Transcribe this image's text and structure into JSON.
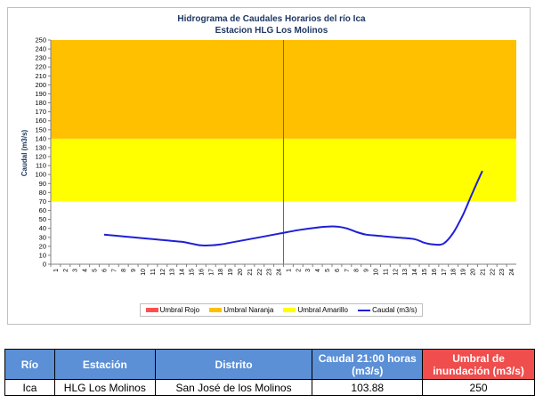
{
  "colors": {
    "rojo": "#ff5050",
    "naranja": "#ffc000",
    "amarillo": "#ffff00",
    "caudal": "#1f1fd6",
    "header_blue": "#5b8fd6",
    "header_red": "#f04d4d"
  },
  "chart_data": {
    "type": "line",
    "title": "Hidrograma de Caudales Horarios del río Ica",
    "subtitle": "Estacion HLG Los Molinos",
    "ylabel": "Caudal  (m3/s)",
    "xlabel": "",
    "ylim": [
      0,
      250
    ],
    "yticks": [
      0,
      10,
      20,
      30,
      40,
      50,
      60,
      70,
      80,
      90,
      100,
      110,
      120,
      130,
      140,
      150,
      160,
      170,
      180,
      190,
      200,
      210,
      220,
      230,
      240,
      250
    ],
    "x_tick_labels": [
      "1",
      "2",
      "3",
      "4",
      "5",
      "6",
      "7",
      "8",
      "9",
      "10",
      "11",
      "12",
      "13",
      "14",
      "15",
      "16",
      "17",
      "18",
      "19",
      "20",
      "21",
      "22",
      "23",
      "24",
      "1",
      "2",
      "3",
      "4",
      "5",
      "6",
      "7",
      "8",
      "9",
      "10",
      "11",
      "12",
      "13",
      "14",
      "15",
      "16",
      "17",
      "18",
      "19",
      "20",
      "21",
      "22",
      "23",
      "24"
    ],
    "grid": false,
    "legend_position": "bottom",
    "bands": [
      {
        "name": "Umbral Amarillo",
        "from": 70,
        "to": 140,
        "color": "#ffff00"
      },
      {
        "name": "Umbral Naranja",
        "from": 140,
        "to": 250,
        "color": "#ffc000"
      }
    ],
    "legend": [
      "Umbral Rojo",
      "Umbral Naranja",
      "Umbral Amarillo",
      "Caudal (m3/s)"
    ],
    "series": [
      {
        "name": "Caudal (m3/s)",
        "x": [
          6,
          8,
          10,
          12,
          14,
          15,
          16,
          17,
          18,
          19,
          20,
          22,
          24,
          26,
          28,
          29,
          30,
          31,
          32,
          33,
          34,
          35,
          36,
          38,
          39,
          40,
          41,
          42,
          43,
          44,
          45
        ],
        "values": [
          33,
          31,
          29,
          27,
          25,
          23,
          21,
          21,
          22,
          24,
          26,
          30,
          34,
          38,
          41,
          42,
          42,
          40,
          36,
          33,
          32,
          31,
          30,
          28,
          24,
          22,
          23,
          35,
          55,
          80,
          104
        ]
      }
    ]
  },
  "table": {
    "headers": [
      "Río",
      "Estación",
      "Distrito",
      "Caudal 21:00 horas (m3/s)",
      "Umbral de inundación (m3/s)"
    ],
    "row": [
      "Ica",
      "HLG Los Molinos",
      "San José de los Molinos",
      "103.88",
      "250"
    ]
  }
}
